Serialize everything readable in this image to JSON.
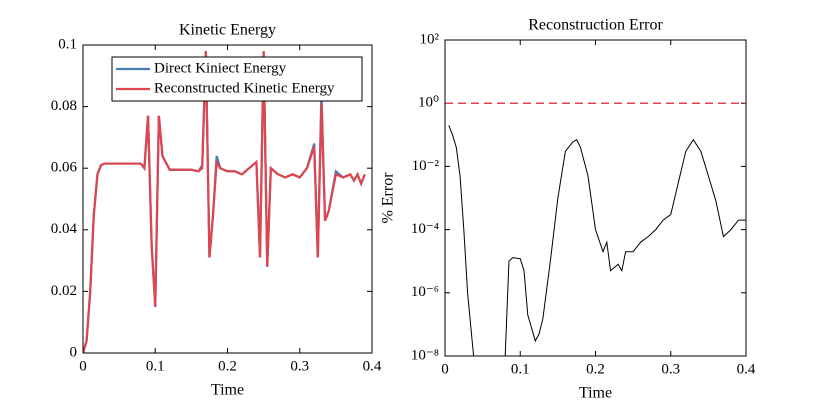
{
  "chart_data": [
    {
      "type": "line",
      "title": "Kinetic Energy",
      "xlabel": "Time",
      "x": [
        0,
        0.005,
        0.01,
        0.015,
        0.02,
        0.025,
        0.03,
        0.04,
        0.05,
        0.06,
        0.07,
        0.08,
        0.085,
        0.09,
        0.095,
        0.1,
        0.105,
        0.11,
        0.12,
        0.13,
        0.14,
        0.15,
        0.16,
        0.165,
        0.17,
        0.175,
        0.18,
        0.185,
        0.19,
        0.2,
        0.21,
        0.22,
        0.23,
        0.24,
        0.245,
        0.25,
        0.255,
        0.26,
        0.27,
        0.28,
        0.29,
        0.3,
        0.31,
        0.32,
        0.325,
        0.33,
        0.335,
        0.34,
        0.35,
        0.36,
        0.37,
        0.375,
        0.38,
        0.385,
        0.39
      ],
      "series": [
        {
          "name": "Direct Kiniect Energy",
          "color": "#4a7fb5",
          "values": [
            0,
            0.004,
            0.02,
            0.045,
            0.058,
            0.061,
            0.0615,
            0.0615,
            0.0615,
            0.0615,
            0.0615,
            0.0615,
            0.06,
            0.077,
            0.035,
            0.015,
            0.077,
            0.064,
            0.0595,
            0.0595,
            0.0595,
            0.0595,
            0.059,
            0.061,
            0.098,
            0.031,
            0.045,
            0.064,
            0.06,
            0.059,
            0.059,
            0.058,
            0.06,
            0.062,
            0.031,
            0.098,
            0.028,
            0.06,
            0.058,
            0.057,
            0.058,
            0.057,
            0.06,
            0.068,
            0.031,
            0.085,
            0.043,
            0.046,
            0.059,
            0.057,
            0.058,
            0.056,
            0.058,
            0.055,
            0.058
          ]
        },
        {
          "name": "Reconstructed Kinetic Energy",
          "color": "#e0444c",
          "values": [
            0,
            0.004,
            0.02,
            0.045,
            0.058,
            0.061,
            0.0615,
            0.0615,
            0.0615,
            0.0615,
            0.0615,
            0.0615,
            0.06,
            0.077,
            0.035,
            0.015,
            0.077,
            0.064,
            0.0595,
            0.0595,
            0.0595,
            0.0595,
            0.059,
            0.06,
            0.098,
            0.031,
            0.045,
            0.062,
            0.06,
            0.059,
            0.059,
            0.058,
            0.06,
            0.062,
            0.031,
            0.098,
            0.028,
            0.06,
            0.058,
            0.057,
            0.058,
            0.057,
            0.06,
            0.067,
            0.031,
            0.081,
            0.043,
            0.046,
            0.058,
            0.057,
            0.058,
            0.056,
            0.058,
            0.055,
            0.058
          ]
        }
      ],
      "xlim": [
        0,
        0.4
      ],
      "xticks": [
        0,
        0.1,
        0.2,
        0.3,
        0.4
      ],
      "ylim": [
        0,
        0.1
      ],
      "yticks": [
        0,
        0.02,
        0.04,
        0.06,
        0.08,
        0.1
      ],
      "legend": "northeast"
    },
    {
      "type": "line",
      "title": "Reconstruction Error",
      "xlabel": "Time",
      "ylabel": "% Error",
      "log_y": true,
      "x": [
        0.005,
        0.01,
        0.015,
        0.02,
        0.025,
        0.03,
        0.038,
        0.06,
        0.08,
        0.085,
        0.09,
        0.1,
        0.105,
        0.11,
        0.12,
        0.125,
        0.13,
        0.14,
        0.15,
        0.16,
        0.17,
        0.175,
        0.18,
        0.19,
        0.2,
        0.21,
        0.215,
        0.22,
        0.23,
        0.235,
        0.24,
        0.25,
        0.26,
        0.27,
        0.28,
        0.29,
        0.3,
        0.31,
        0.32,
        0.33,
        0.34,
        0.35,
        0.36,
        0.37,
        0.38,
        0.39,
        0.4
      ],
      "series": [
        {
          "name": "Error",
          "color": "#000000",
          "values": [
            0.2,
            0.1,
            0.04,
            0.005,
            0.0001,
            1e-06,
            1e-08,
            null,
            1e-08,
            1e-05,
            1.3e-05,
            1.2e-05,
            5e-06,
            2e-07,
            3e-08,
            5e-08,
            1.5e-07,
            1e-05,
            0.001,
            0.03,
            0.06,
            0.07,
            0.04,
            0.005,
            0.0001,
            2e-05,
            4e-05,
            5e-06,
            8e-06,
            5e-06,
            2e-05,
            2e-05,
            4e-05,
            6e-05,
            0.0001,
            0.0002,
            0.0003,
            0.003,
            0.03,
            0.07,
            0.03,
            0.005,
            0.0008,
            6e-05,
            0.0001,
            0.0002,
            0.0002
          ]
        }
      ],
      "hline": 1,
      "hline_color": "#e0444c",
      "xlim": [
        0,
        0.4
      ],
      "xticks": [
        0,
        0.1,
        0.2,
        0.3,
        0.4
      ],
      "ylim": [
        1e-08,
        100
      ],
      "yticks": [
        {
          "value": 1e-08,
          "label": "10⁻⁸"
        },
        {
          "value": 1e-06,
          "label": "10⁻⁶"
        },
        {
          "value": 0.0001,
          "label": "10⁻⁴"
        },
        {
          "value": 0.01,
          "label": "10⁻²"
        },
        {
          "value": 1,
          "label": "10⁰"
        },
        {
          "value": 100,
          "label": "10²"
        }
      ]
    }
  ]
}
